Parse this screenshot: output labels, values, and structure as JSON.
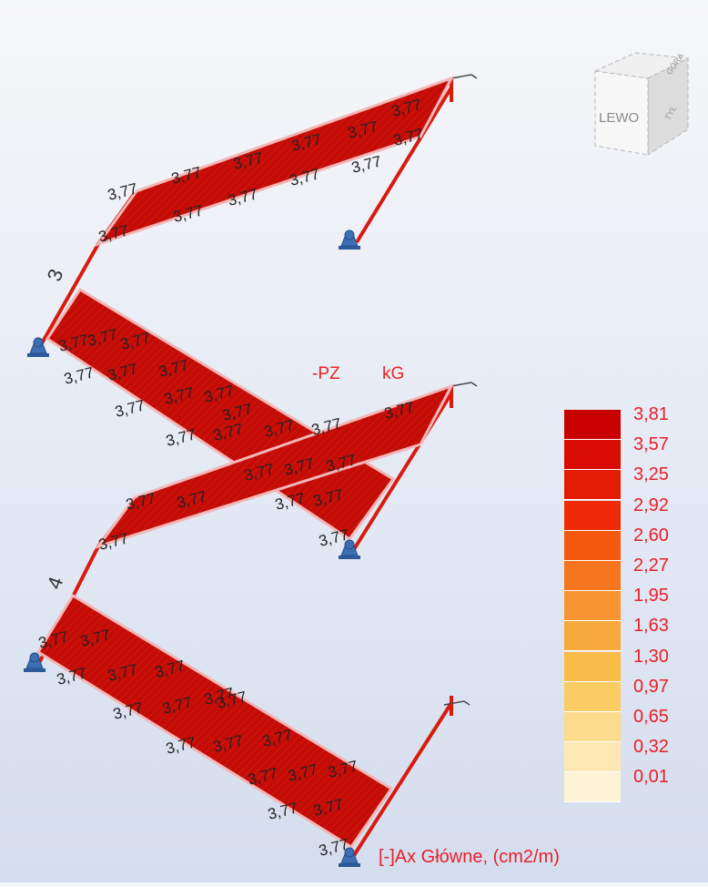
{
  "view_cube": {
    "face_label": "LEWO",
    "top_label": "GÓRA",
    "right_label": "TYŁ"
  },
  "view_labels": {
    "projection": "-PZ",
    "units": "kG"
  },
  "stair_labels": {
    "flight_3": "3",
    "flight_4": "4"
  },
  "panel_value": "3,77",
  "legend": {
    "values": [
      "3,81",
      "3,57",
      "3,25",
      "2,92",
      "2,60",
      "2,27",
      "1,95",
      "1,63",
      "1,30",
      "0,97",
      "0,65",
      "0,32",
      "0,01"
    ],
    "colors": [
      "#c90000",
      "#d80c02",
      "#e41c04",
      "#f02a08",
      "#f4580f",
      "#f6751f",
      "#f79532",
      "#f8a93e",
      "#f9bc48",
      "#fbcc63",
      "#fcdc8c",
      "#fde8b3",
      "#fef3d5"
    ]
  },
  "result_label": "[-]Ax Główne, (cm2/m)",
  "colors": {
    "panel_fill": "#c40b05",
    "panel_edge": "#f3b7b7",
    "support": "#3c6fb3",
    "label_red": "#e8202a"
  },
  "icons": [
    "view-cube-icon",
    "pinned-support-icon"
  ]
}
